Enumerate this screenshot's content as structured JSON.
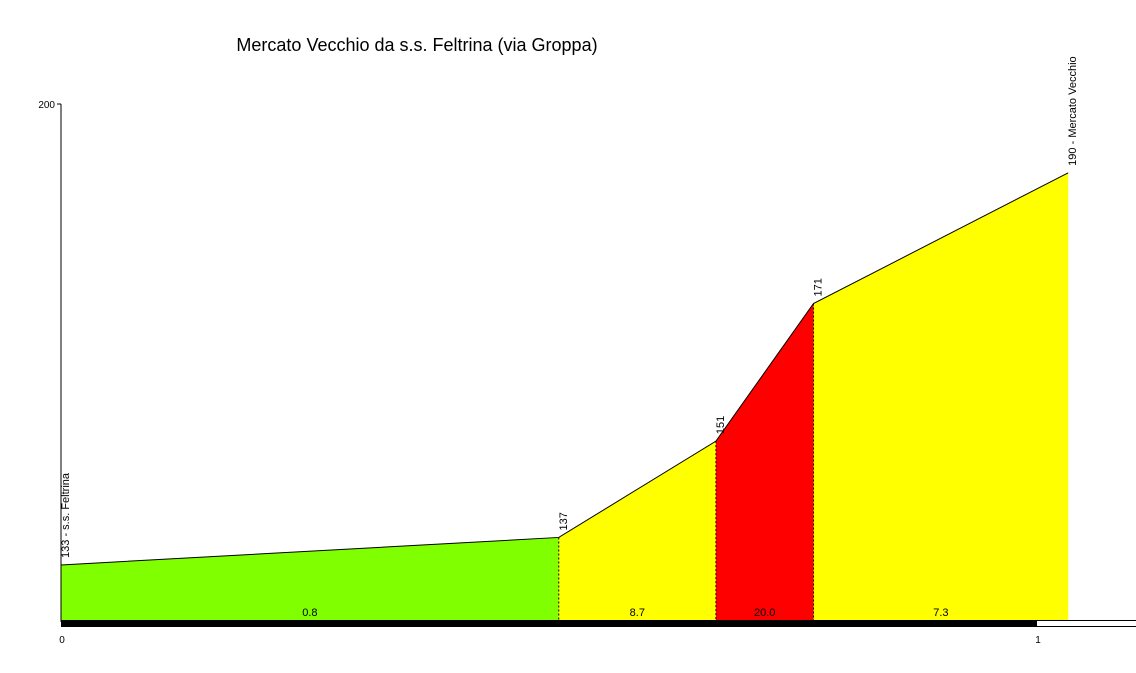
{
  "chart_data": {
    "type": "area",
    "title": "Mercato Vecchio da s.s. Feltrina (via Groppa)",
    "xlabel": "",
    "ylabel": "",
    "y_axis": {
      "bottom_value": 125,
      "top_label": "200",
      "top_value": 200
    },
    "x_axis": {
      "min": 0,
      "max": 1.03,
      "ticks": [
        {
          "value": 0,
          "label": "0"
        },
        {
          "value": 1,
          "label": "1"
        }
      ]
    },
    "grid": false,
    "points": [
      {
        "x": 0,
        "altitude": 133,
        "label": "133 - s.s. Feltrina"
      },
      {
        "x": 0.51,
        "altitude": 137,
        "label": "137"
      },
      {
        "x": 0.671,
        "altitude": 151,
        "label": "151"
      },
      {
        "x": 0.771,
        "altitude": 171,
        "label": "171"
      },
      {
        "x": 1.032,
        "altitude": 190,
        "label": "190 - Mercato Vecchio"
      }
    ],
    "segments": [
      {
        "gradient_label": "0.8",
        "color": "#80ff00"
      },
      {
        "gradient_label": "8.7",
        "color": "#ffff00"
      },
      {
        "gradient_label": "20.0",
        "color": "#ff0000"
      },
      {
        "gradient_label": "7.3",
        "color": "#ffff00"
      }
    ]
  }
}
